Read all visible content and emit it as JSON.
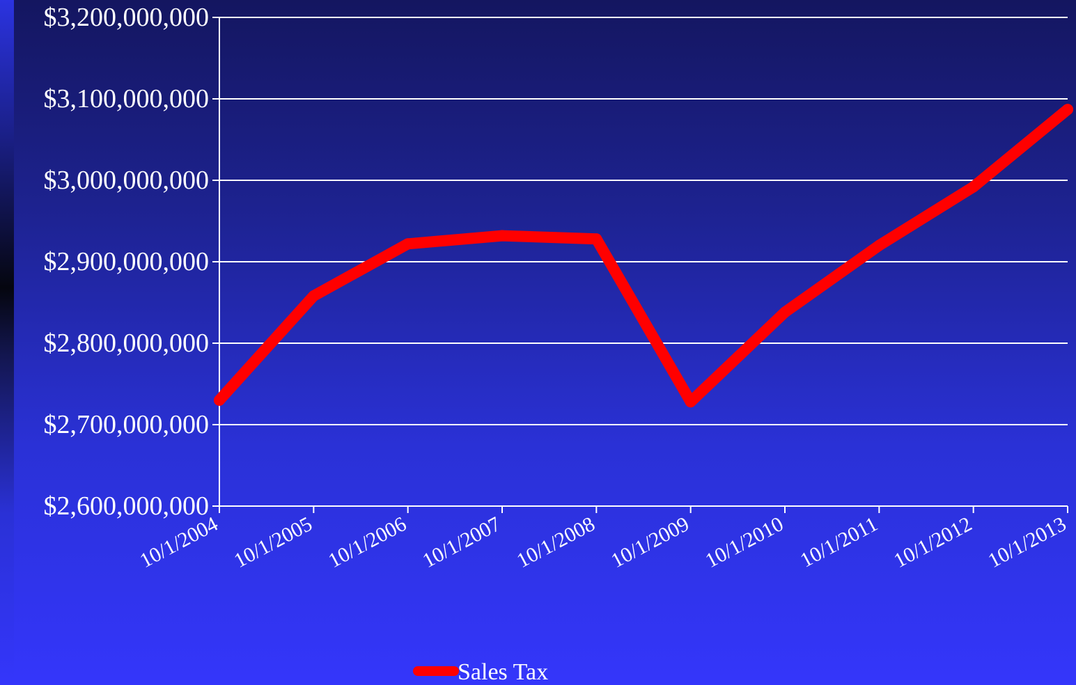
{
  "chart_data": {
    "type": "line",
    "title": "",
    "xlabel": "",
    "ylabel": "",
    "x": [
      "10/1/2004",
      "10/1/2005",
      "10/1/2006",
      "10/1/2007",
      "10/1/2008",
      "10/1/2009",
      "10/1/2010",
      "10/1/2011",
      "10/1/2012",
      "10/1/2013"
    ],
    "series": [
      {
        "name": "Sales Tax",
        "color": "#ff0000",
        "values": [
          2730000000,
          2858000000,
          2922000000,
          2932000000,
          2928000000,
          2728000000,
          2838000000,
          2920000000,
          2992000000,
          3087000000
        ]
      }
    ],
    "ylim": [
      2600000000,
      3200000000
    ],
    "yticks": [
      2600000000,
      2700000000,
      2800000000,
      2900000000,
      3000000000,
      3100000000,
      3200000000
    ],
    "ytick_labels": [
      "$2,600,000,000",
      "$2,700,000,000",
      "$2,800,000,000",
      "$2,900,000,000",
      "$3,000,000,000",
      "$3,100,000,000",
      "$3,200,000,000"
    ],
    "grid": true,
    "legend_position": "bottom",
    "colors": {
      "grid": "#ffffff",
      "axis": "#ffffff",
      "text": "#ffffff"
    }
  }
}
